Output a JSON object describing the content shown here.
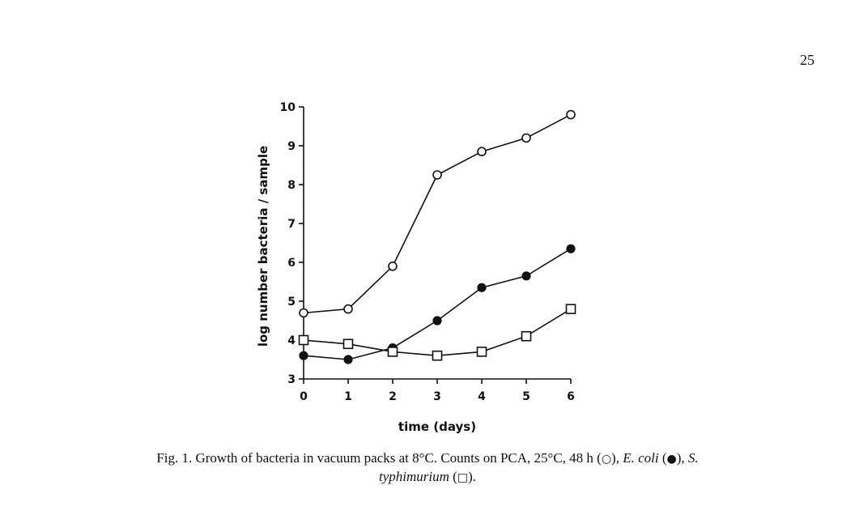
{
  "page_number": "25",
  "caption": {
    "part1": "Fig. 1. Growth of bacteria in vacuum packs at 8°C. Counts on PCA, 25°C, 48 h (",
    "sym1": "○",
    "part2": "), ",
    "ecoli": "E. coli",
    "part3": " (",
    "sym2": "●",
    "part4": "), ",
    "salmonella_s": "S.",
    "salmonella_t": "typhimurium",
    "part5": " (",
    "sym3": "□",
    "part6": ")."
  },
  "chart_data": {
    "type": "line",
    "title": "",
    "xlabel": "time (days)",
    "ylabel": "log number bacteria / sample",
    "x": [
      0,
      1,
      2,
      3,
      4,
      5,
      6
    ],
    "xlim": [
      0,
      6
    ],
    "ylim": [
      3,
      10
    ],
    "xticks": [
      "0",
      "1",
      "2",
      "3",
      "4",
      "5",
      "6"
    ],
    "yticks": [
      "3",
      "4",
      "5",
      "6",
      "7",
      "8",
      "9",
      "10"
    ],
    "grid": false,
    "series": [
      {
        "marker": "open-circle",
        "values": [
          4.7,
          4.8,
          5.9,
          8.25,
          8.85,
          9.2,
          9.8
        ]
      },
      {
        "marker": "filled-circle",
        "values": [
          3.6,
          3.5,
          3.8,
          4.5,
          5.35,
          5.65,
          6.35
        ]
      },
      {
        "marker": "open-square",
        "values": [
          4.0,
          3.9,
          3.7,
          3.6,
          3.7,
          4.1,
          4.8
        ]
      }
    ]
  }
}
